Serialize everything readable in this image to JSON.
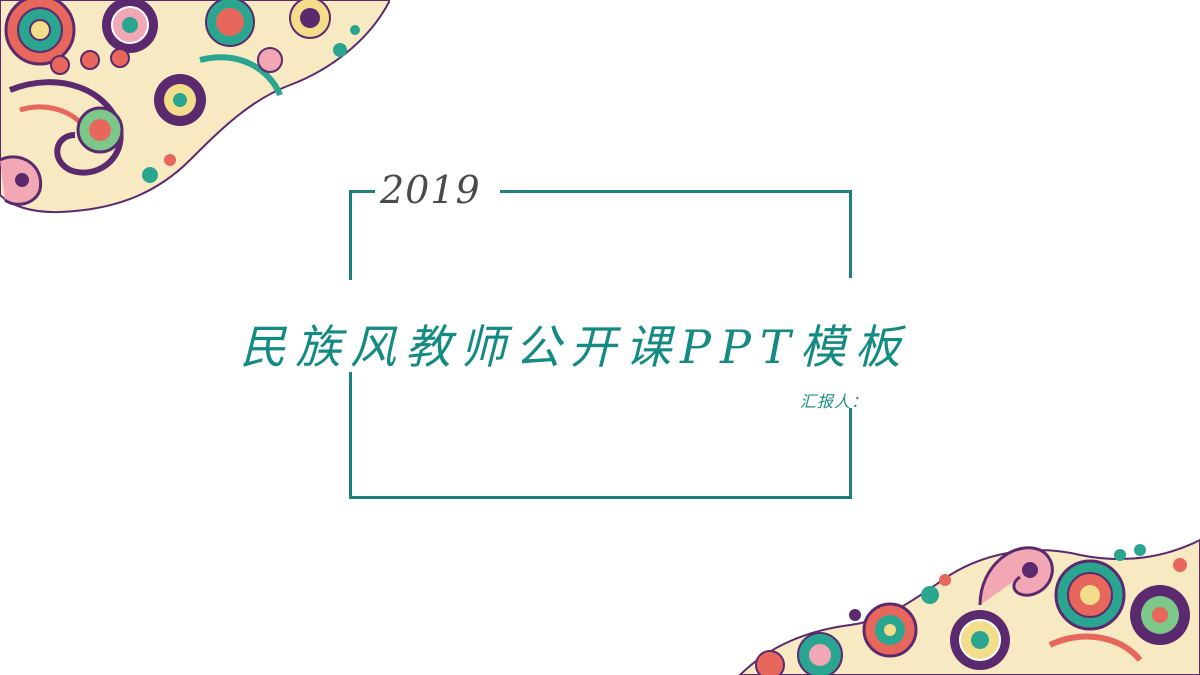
{
  "slide": {
    "year": "2019",
    "title": "民族风教师公开课PPT模板",
    "reporter_label": "汇报人："
  },
  "decorations": {
    "top_left": "floral-paisley-ornament",
    "bottom_right": "floral-paisley-ornament"
  },
  "colors": {
    "frame": "#1f7f7b",
    "title": "#138b82",
    "year": "#4a4a4a",
    "ornament_teal": "#2aa58f",
    "ornament_purple": "#5b2a6e",
    "ornament_coral": "#e8675d",
    "ornament_pink": "#f2a8b4",
    "ornament_yellow": "#f3dc8a",
    "ornament_green": "#7cc88a",
    "background": "#ffffff"
  }
}
